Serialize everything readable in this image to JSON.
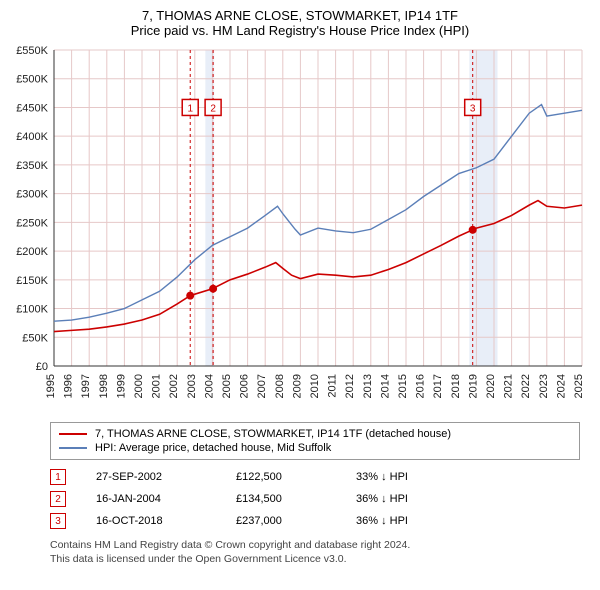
{
  "title_main": "7, THOMAS ARNE CLOSE, STOWMARKET, IP14 1TF",
  "title_sub": "Price paid vs. HM Land Registry's House Price Index (HPI)",
  "chart": {
    "type": "line",
    "background_color": "#ffffff",
    "grid_color": "#e6c8c8",
    "axis_color": "#333333",
    "y": {
      "min": 0,
      "max": 550000,
      "step": 50000,
      "label_prefix": "£",
      "label_suffix": "K",
      "divide": 1000,
      "fontsize": 11
    },
    "x": {
      "min": 1995,
      "max": 2025,
      "step": 1,
      "fontsize": 11
    },
    "shaded_bands": [
      {
        "from": 2003.6,
        "to": 2004.1,
        "color": "#e8eef8"
      },
      {
        "from": 2018.6,
        "to": 2020.2,
        "color": "#e8eef8"
      }
    ],
    "markers": [
      {
        "id": "1",
        "year": 2002.74,
        "label_y": 450000,
        "line_color": "#cc0000",
        "dash": "3,3"
      },
      {
        "id": "2",
        "year": 2004.04,
        "label_y": 450000,
        "line_color": "#cc0000",
        "dash": "3,3"
      },
      {
        "id": "3",
        "year": 2018.79,
        "label_y": 450000,
        "line_color": "#cc0000",
        "dash": "3,3"
      }
    ],
    "dot_markers": [
      {
        "year": 2002.74,
        "value": 122500,
        "color": "#cc0000"
      },
      {
        "year": 2004.04,
        "value": 134500,
        "color": "#cc0000"
      },
      {
        "year": 2018.79,
        "value": 237000,
        "color": "#cc0000"
      }
    ],
    "series": [
      {
        "name": "property",
        "color": "#cc0000",
        "width": 1.6,
        "points": [
          [
            1995,
            60000
          ],
          [
            1996,
            62000
          ],
          [
            1997,
            64000
          ],
          [
            1998,
            68000
          ],
          [
            1999,
            73000
          ],
          [
            2000,
            80000
          ],
          [
            2001,
            90000
          ],
          [
            2002,
            108000
          ],
          [
            2002.74,
            122500
          ],
          [
            2003,
            125000
          ],
          [
            2004,
            134500
          ],
          [
            2005,
            150000
          ],
          [
            2006,
            160000
          ],
          [
            2007,
            172000
          ],
          [
            2007.6,
            180000
          ],
          [
            2008,
            170000
          ],
          [
            2008.5,
            158000
          ],
          [
            2009,
            152000
          ],
          [
            2010,
            160000
          ],
          [
            2011,
            158000
          ],
          [
            2012,
            155000
          ],
          [
            2013,
            158000
          ],
          [
            2014,
            168000
          ],
          [
            2015,
            180000
          ],
          [
            2016,
            195000
          ],
          [
            2017,
            210000
          ],
          [
            2018,
            226000
          ],
          [
            2018.79,
            237000
          ],
          [
            2019,
            240000
          ],
          [
            2020,
            248000
          ],
          [
            2021,
            262000
          ],
          [
            2022,
            280000
          ],
          [
            2022.5,
            288000
          ],
          [
            2023,
            278000
          ],
          [
            2024,
            275000
          ],
          [
            2025,
            280000
          ]
        ]
      },
      {
        "name": "hpi",
        "color": "#5b7fb8",
        "width": 1.4,
        "points": [
          [
            1995,
            78000
          ],
          [
            1996,
            80000
          ],
          [
            1997,
            85000
          ],
          [
            1998,
            92000
          ],
          [
            1999,
            100000
          ],
          [
            2000,
            115000
          ],
          [
            2001,
            130000
          ],
          [
            2002,
            155000
          ],
          [
            2003,
            185000
          ],
          [
            2004,
            210000
          ],
          [
            2005,
            225000
          ],
          [
            2006,
            240000
          ],
          [
            2007,
            262000
          ],
          [
            2007.7,
            278000
          ],
          [
            2008,
            265000
          ],
          [
            2008.7,
            238000
          ],
          [
            2009,
            228000
          ],
          [
            2010,
            240000
          ],
          [
            2011,
            235000
          ],
          [
            2012,
            232000
          ],
          [
            2013,
            238000
          ],
          [
            2014,
            255000
          ],
          [
            2015,
            272000
          ],
          [
            2016,
            295000
          ],
          [
            2017,
            315000
          ],
          [
            2018,
            335000
          ],
          [
            2019,
            345000
          ],
          [
            2020,
            360000
          ],
          [
            2021,
            400000
          ],
          [
            2022,
            440000
          ],
          [
            2022.7,
            455000
          ],
          [
            2023,
            435000
          ],
          [
            2024,
            440000
          ],
          [
            2025,
            445000
          ]
        ]
      }
    ]
  },
  "legend": [
    {
      "color": "#cc0000",
      "label": "7, THOMAS ARNE CLOSE, STOWMARKET, IP14 1TF (detached house)"
    },
    {
      "color": "#5b7fb8",
      "label": "HPI: Average price, detached house, Mid Suffolk"
    }
  ],
  "marker_rows": [
    {
      "id": "1",
      "date": "27-SEP-2002",
      "price": "£122,500",
      "pct": "33% ↓ HPI"
    },
    {
      "id": "2",
      "date": "16-JAN-2004",
      "price": "£134,500",
      "pct": "36% ↓ HPI"
    },
    {
      "id": "3",
      "date": "16-OCT-2018",
      "price": "£237,000",
      "pct": "36% ↓ HPI"
    }
  ],
  "footnote_l1": "Contains HM Land Registry data © Crown copyright and database right 2024.",
  "footnote_l2": "This data is licensed under the Open Government Licence v3.0."
}
